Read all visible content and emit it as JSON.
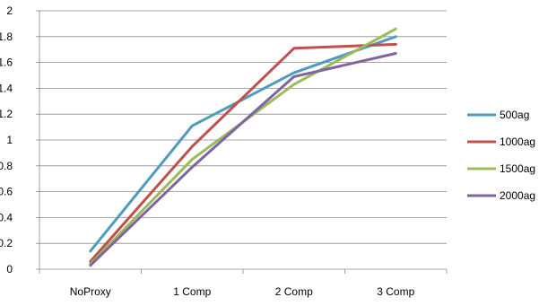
{
  "chart_data": {
    "type": "line",
    "categories": [
      "NoProxy",
      "1 Comp",
      "2 Comp",
      "3 Comp"
    ],
    "series": [
      {
        "name": "500ag",
        "values": [
          0.14,
          1.11,
          1.52,
          1.8
        ],
        "color": "#4F9BC0"
      },
      {
        "name": "1000ag",
        "values": [
          0.06,
          0.95,
          1.71,
          1.74
        ],
        "color": "#C0504D"
      },
      {
        "name": "1500ag",
        "values": [
          0.04,
          0.85,
          1.43,
          1.86
        ],
        "color": "#9BBB59"
      },
      {
        "name": "2000ag",
        "values": [
          0.03,
          0.79,
          1.49,
          1.67
        ],
        "color": "#8064A2"
      }
    ],
    "y_ticks": [
      "0",
      "0.2",
      "0.4",
      "0.6",
      "0.8",
      "1",
      "1.2",
      "1.4",
      "1.6",
      "1.8",
      "2"
    ],
    "ylim": [
      0,
      2
    ],
    "grid": true,
    "legend_position": "right",
    "title": "",
    "xlabel": "",
    "ylabel": ""
  }
}
